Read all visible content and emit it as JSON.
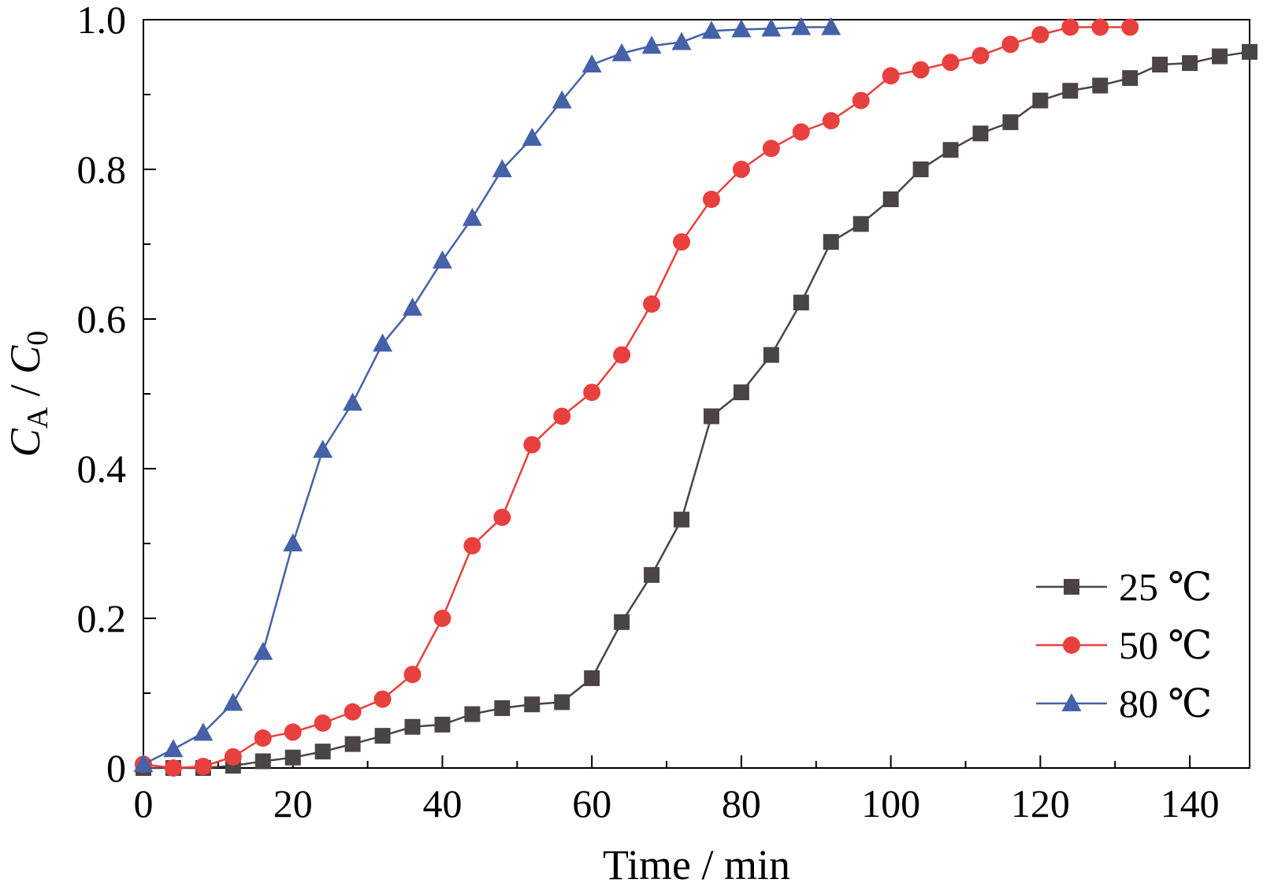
{
  "chart_data": {
    "type": "line",
    "xlabel": "Time / min",
    "ylabel_main": "C",
    "ylabel_main_sub": "A",
    "ylabel_sep": " / ",
    "ylabel_denom": "C",
    "ylabel_denom_sub": "0",
    "xlim": [
      0,
      148
    ],
    "ylim": [
      0,
      1.0
    ],
    "x_ticks": [
      0,
      20,
      40,
      60,
      80,
      100,
      120,
      140
    ],
    "x_tick_labels": [
      "0",
      "20",
      "40",
      "60",
      "80",
      "100",
      "120",
      "140"
    ],
    "y_ticks": [
      0,
      0.2,
      0.4,
      0.6,
      0.8,
      1.0
    ],
    "y_tick_labels": [
      "0",
      "0.2",
      "0.4",
      "0.6",
      "0.8",
      "1.0"
    ],
    "grid": false,
    "legend_position": "bottom-right",
    "series": [
      {
        "name": "25 ℃",
        "color": "#4a4544",
        "marker": "square",
        "x": [
          0,
          4,
          8,
          12,
          16,
          20,
          24,
          28,
          32,
          36,
          40,
          44,
          48,
          52,
          56,
          60,
          64,
          68,
          72,
          76,
          80,
          84,
          88,
          92,
          96,
          100,
          104,
          108,
          112,
          116,
          120,
          124,
          128,
          132,
          136,
          140,
          144,
          148
        ],
        "y": [
          0.0,
          0.0,
          0.0,
          0.003,
          0.009,
          0.014,
          0.022,
          0.032,
          0.043,
          0.055,
          0.058,
          0.072,
          0.08,
          0.085,
          0.088,
          0.12,
          0.195,
          0.258,
          0.332,
          0.47,
          0.502,
          0.552,
          0.622,
          0.703,
          0.727,
          0.76,
          0.8,
          0.826,
          0.848,
          0.863,
          0.892,
          0.905,
          0.912,
          0.922,
          0.94,
          0.942,
          0.951,
          0.957
        ]
      },
      {
        "name": "50 ℃",
        "color": "#e8403e",
        "marker": "circle",
        "x": [
          0,
          4,
          8,
          12,
          16,
          20,
          24,
          28,
          32,
          36,
          40,
          44,
          48,
          52,
          56,
          60,
          64,
          68,
          72,
          76,
          80,
          84,
          88,
          92,
          96,
          100,
          104,
          108,
          112,
          116,
          120,
          124,
          128,
          132
        ],
        "y": [
          0.005,
          0.0,
          0.002,
          0.015,
          0.04,
          0.048,
          0.06,
          0.075,
          0.092,
          0.125,
          0.2,
          0.297,
          0.335,
          0.432,
          0.47,
          0.502,
          0.552,
          0.62,
          0.703,
          0.76,
          0.8,
          0.828,
          0.85,
          0.865,
          0.892,
          0.925,
          0.933,
          0.943,
          0.952,
          0.967,
          0.98,
          0.99,
          0.99,
          0.99
        ]
      },
      {
        "name": "80 ℃",
        "color": "#4561a8",
        "marker": "triangle",
        "x": [
          0,
          4,
          8,
          12,
          16,
          20,
          24,
          28,
          32,
          36,
          40,
          44,
          48,
          52,
          56,
          60,
          64,
          68,
          72,
          76,
          80,
          84,
          88,
          92
        ],
        "y": [
          0.005,
          0.025,
          0.047,
          0.087,
          0.155,
          0.3,
          0.425,
          0.488,
          0.567,
          0.615,
          0.678,
          0.735,
          0.8,
          0.842,
          0.892,
          0.94,
          0.955,
          0.965,
          0.97,
          0.985,
          0.987,
          0.988,
          0.99,
          0.99
        ]
      }
    ]
  }
}
